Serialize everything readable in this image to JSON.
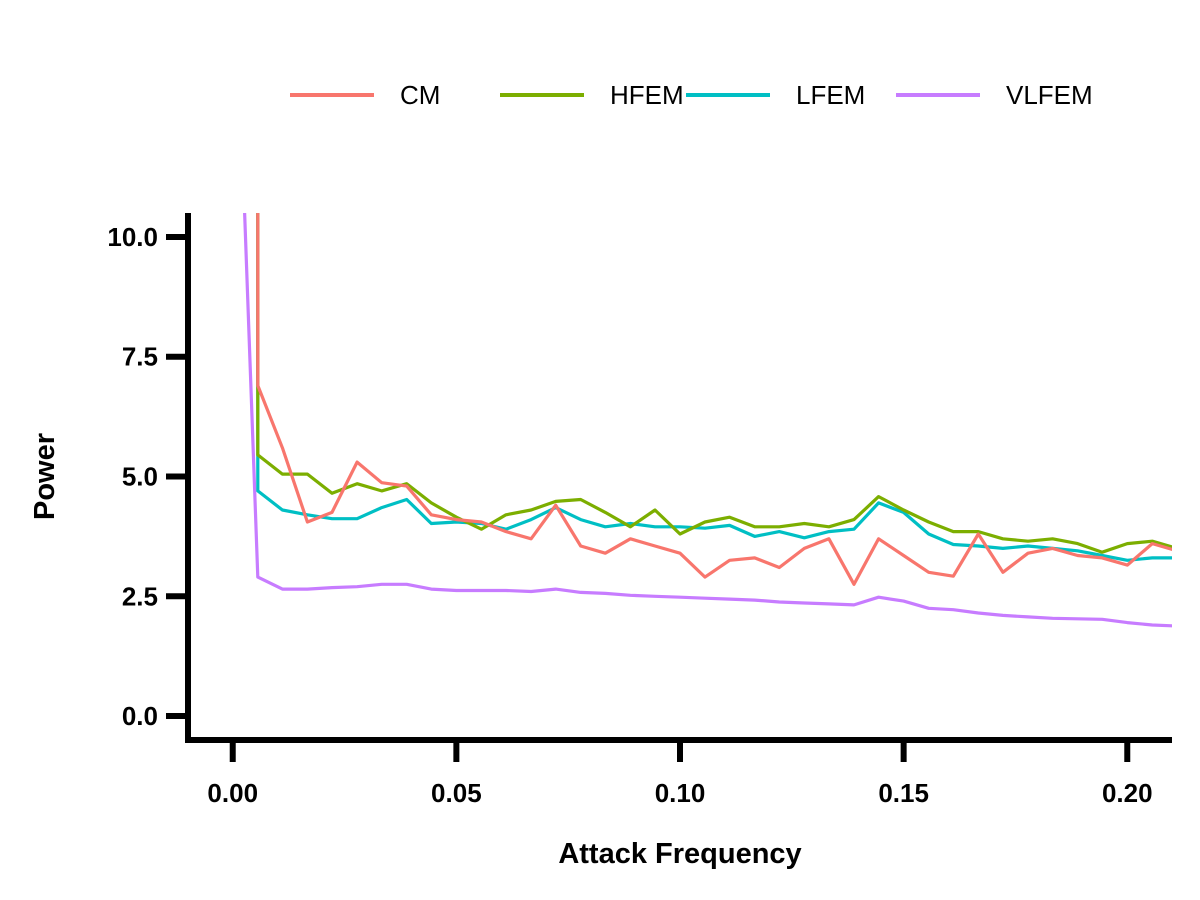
{
  "chart_data": {
    "type": "line",
    "xlabel": "Attack Frequency",
    "ylabel": "Power",
    "xlim": [
      -0.01,
      0.21
    ],
    "ylim": [
      -0.5,
      10.5
    ],
    "xticks": [
      0.0,
      0.05,
      0.1,
      0.15,
      0.2
    ],
    "xtick_labels": [
      "0.00",
      "0.05",
      "0.10",
      "0.15",
      "0.20"
    ],
    "yticks": [
      0.0,
      2.5,
      5.0,
      7.5,
      10.0
    ],
    "ytick_labels": [
      "0.0",
      "2.5",
      "5.0",
      "7.5",
      "10.0"
    ],
    "grid": false,
    "legend_position": "top",
    "x": [
      0.0025,
      0.0056,
      0.0111,
      0.0167,
      0.0222,
      0.0278,
      0.0333,
      0.0389,
      0.0444,
      0.05,
      0.0556,
      0.0611,
      0.0667,
      0.0722,
      0.0778,
      0.0833,
      0.0889,
      0.0944,
      0.1,
      0.1056,
      0.1111,
      0.1167,
      0.1222,
      0.1278,
      0.1333,
      0.1389,
      0.1444,
      0.15,
      0.1556,
      0.1611,
      0.1667,
      0.1722,
      0.1778,
      0.1833,
      0.1889,
      0.1944,
      0.2,
      0.2056,
      0.2111
    ],
    "series": [
      {
        "name": "CM",
        "color": "#F8766D",
        "values": [
          null,
          6.9,
          5.6,
          4.05,
          4.25,
          5.3,
          4.87,
          4.8,
          4.2,
          4.1,
          4.05,
          3.85,
          3.7,
          4.4,
          3.55,
          3.4,
          3.7,
          3.55,
          3.4,
          2.9,
          3.25,
          3.3,
          3.1,
          3.5,
          3.7,
          2.75,
          3.7,
          3.35,
          3.0,
          2.92,
          3.8,
          3.0,
          3.4,
          3.5,
          3.35,
          3.3,
          3.15,
          3.6,
          3.45
        ]
      },
      {
        "name": "HFEM",
        "color": "#7CAE00",
        "values": [
          null,
          5.45,
          5.05,
          5.05,
          4.65,
          4.85,
          4.7,
          4.85,
          4.45,
          4.15,
          3.9,
          4.2,
          4.3,
          4.48,
          4.52,
          4.25,
          3.95,
          4.3,
          3.8,
          4.05,
          4.15,
          3.95,
          3.95,
          4.02,
          3.95,
          4.1,
          4.58,
          4.3,
          4.05,
          3.85,
          3.85,
          3.7,
          3.65,
          3.7,
          3.6,
          3.42,
          3.6,
          3.65,
          3.5
        ]
      },
      {
        "name": "LFEM",
        "color": "#00BFC4",
        "values": [
          null,
          4.7,
          4.3,
          4.2,
          4.12,
          4.12,
          4.35,
          4.52,
          4.02,
          4.05,
          4.02,
          3.9,
          4.1,
          4.35,
          4.1,
          3.95,
          4.02,
          3.95,
          3.95,
          3.92,
          3.98,
          3.75,
          3.85,
          3.72,
          3.85,
          3.9,
          4.45,
          4.25,
          3.8,
          3.58,
          3.55,
          3.5,
          3.55,
          3.5,
          3.45,
          3.35,
          3.25,
          3.3,
          3.3
        ]
      },
      {
        "name": "VLFEM",
        "color": "#C77CFF",
        "values": [
          10.5,
          2.9,
          2.65,
          2.65,
          2.68,
          2.7,
          2.75,
          2.75,
          2.65,
          2.62,
          2.62,
          2.62,
          2.6,
          2.65,
          2.58,
          2.56,
          2.52,
          2.5,
          2.48,
          2.46,
          2.44,
          2.42,
          2.38,
          2.36,
          2.34,
          2.32,
          2.48,
          2.4,
          2.25,
          2.22,
          2.15,
          2.1,
          2.07,
          2.04,
          2.03,
          2.02,
          1.95,
          1.9,
          1.88
        ]
      }
    ]
  }
}
